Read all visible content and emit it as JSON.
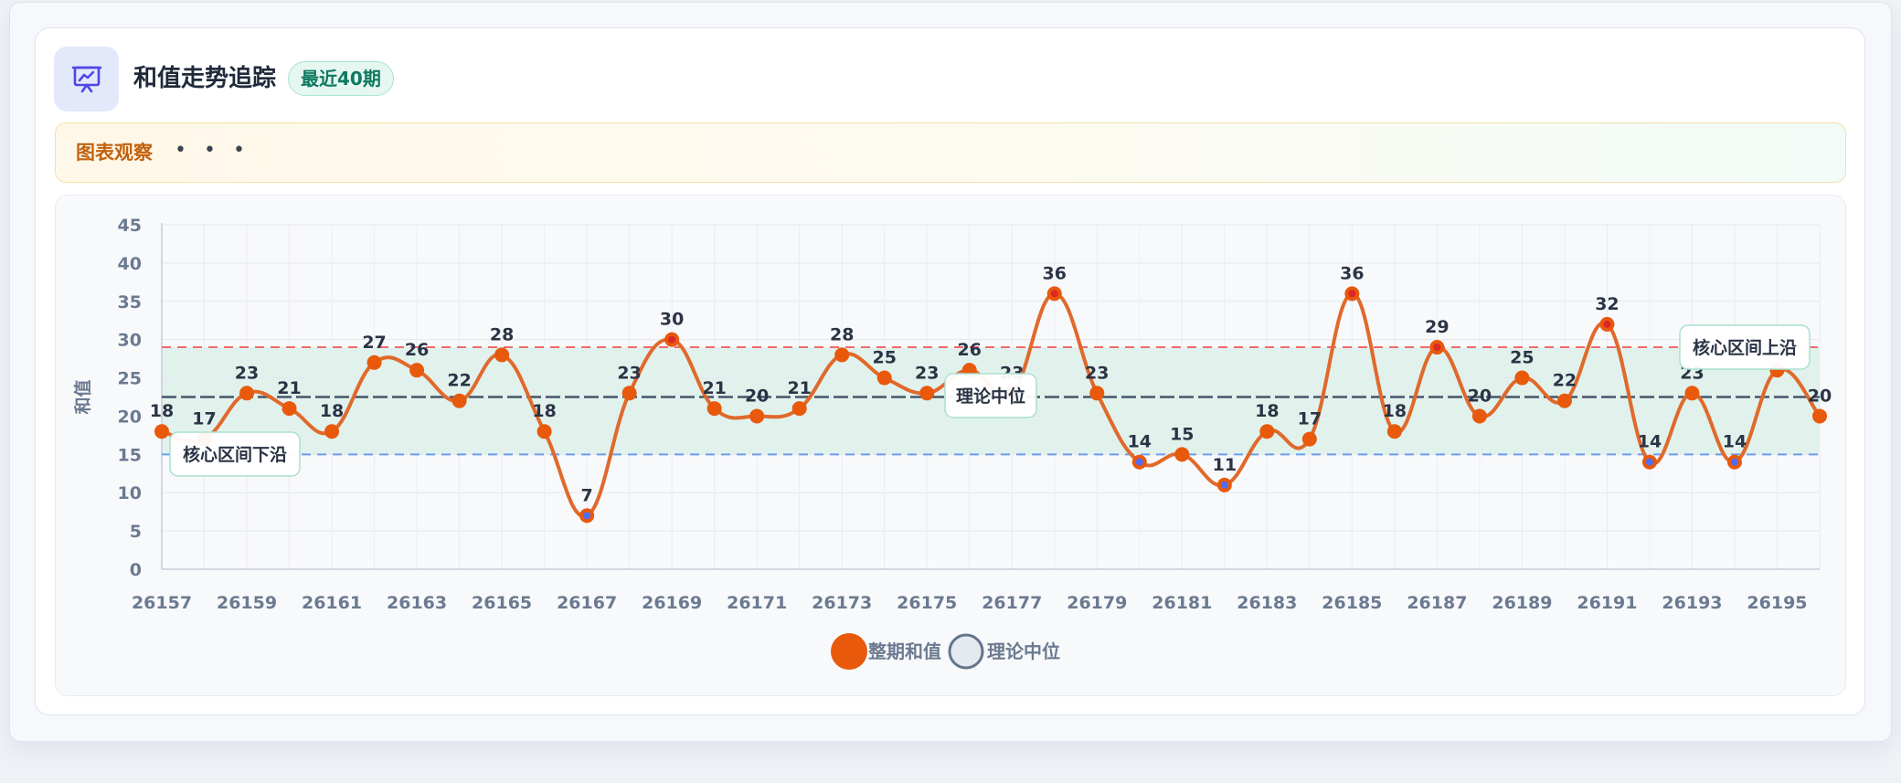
{
  "header": {
    "title": "和值走势追踪",
    "badge": "最近40期",
    "icon": "presentation-chart-icon"
  },
  "notice": {
    "label": "图表观察",
    "more": "• • •"
  },
  "chart_data": {
    "type": "line",
    "smooth": true,
    "ylabel": "和值",
    "xlabel": "",
    "ylim": [
      0,
      45
    ],
    "y_ticks": [
      0,
      5,
      10,
      15,
      20,
      25,
      30,
      35,
      40,
      45
    ],
    "x_tick_labels": [
      "26157",
      "26159",
      "26161",
      "26163",
      "26165",
      "26167",
      "26169",
      "26171",
      "26173",
      "26175",
      "26177",
      "26179",
      "26181",
      "26183",
      "26185",
      "26187",
      "26189",
      "26191",
      "26193",
      "26195"
    ],
    "grid": true,
    "x": [
      26157,
      26158,
      26159,
      26160,
      26161,
      26162,
      26163,
      26164,
      26165,
      26166,
      26167,
      26168,
      26169,
      26170,
      26171,
      26172,
      26173,
      26174,
      26175,
      26176,
      26177,
      26178,
      26179,
      26180,
      26181,
      26182,
      26183,
      26184,
      26185,
      26186,
      26187,
      26188,
      26189,
      26190,
      26191,
      26192,
      26193,
      26194,
      26195,
      26196
    ],
    "series": [
      {
        "name": "整期和值",
        "color": "#e8590c",
        "line_color": "#e0692b",
        "values": [
          18,
          17,
          23,
          21,
          18,
          27,
          26,
          22,
          28,
          18,
          7,
          23,
          30,
          21,
          20,
          21,
          28,
          25,
          23,
          26,
          23,
          36,
          23,
          14,
          15,
          11,
          18,
          17,
          36,
          18,
          29,
          20,
          25,
          22,
          32,
          14,
          23,
          14,
          26,
          20
        ]
      },
      {
        "name": "理论中位",
        "color": "#475569",
        "value": 22.5,
        "style": "dashed"
      }
    ],
    "band": {
      "from": 15,
      "to": 29,
      "color": "#d7f0e6"
    },
    "reference_lines": [
      {
        "value": 29,
        "color": "#ef6b6b",
        "style": "dashed"
      },
      {
        "value": 15,
        "color": "#6b9cf0",
        "style": "dashed"
      }
    ],
    "annotations": [
      {
        "text": "核心区间下沿",
        "x": 26159,
        "y": 15
      },
      {
        "text": "理论中位",
        "x": 26177,
        "y": 22.5
      },
      {
        "text": "核心区间上沿",
        "x": 26195,
        "y": 29
      }
    ],
    "marker_highlights": {
      "high_threshold": 29,
      "high_dot": "#dc2626",
      "low_threshold": 14,
      "low_dot": "#4f6df5"
    },
    "legend": {
      "position": "bottom-center",
      "items": [
        {
          "label": "整期和值",
          "color": "#e8590c"
        },
        {
          "label": "理论中位",
          "color": "#64748b"
        }
      ]
    }
  }
}
